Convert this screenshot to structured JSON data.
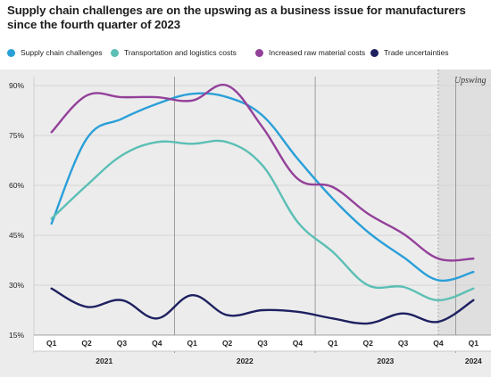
{
  "chart_data": {
    "type": "line",
    "title": "Supply chain challenges are on the upswing as a business issue for manufacturers since the fourth quarter of 2023",
    "x": [
      "Q1 2021",
      "Q2 2021",
      "Q3 2021",
      "Q4 2021",
      "Q1 2022",
      "Q2 2022",
      "Q3 2022",
      "Q4 2022",
      "Q1 2023",
      "Q2 2023",
      "Q3 2023",
      "Q4 2023",
      "Q1 2024"
    ],
    "quarter_labels": [
      "Q1",
      "Q2",
      "Q3",
      "Q4",
      "Q1",
      "Q2",
      "Q3",
      "Q4",
      "Q1",
      "Q2",
      "Q3",
      "Q4",
      "Q1"
    ],
    "year_groups": [
      {
        "label": "2021",
        "start": 0,
        "end": 3
      },
      {
        "label": "2022",
        "start": 4,
        "end": 7
      },
      {
        "label": "2023",
        "start": 8,
        "end": 11
      },
      {
        "label": "2024",
        "start": 12,
        "end": 12
      }
    ],
    "ylim": [
      15,
      90
    ],
    "yticks": [
      15,
      30,
      45,
      60,
      75,
      90
    ],
    "ytick_labels": [
      "15%",
      "30%",
      "45%",
      "60%",
      "75%",
      "90%"
    ],
    "grid": true,
    "legend": "top",
    "annotation": {
      "label": "Upswing",
      "start": 11.5,
      "end": 12.8
    },
    "series": [
      {
        "name": "Supply chain challenges",
        "color": "#2a9fd8",
        "values": [
          48.5,
          74,
          80,
          84.5,
          87.5,
          86.5,
          81,
          68,
          56,
          46,
          38.5,
          31.5,
          34
        ]
      },
      {
        "name": "Transportation and logistics costs",
        "color": "#5bbfb5",
        "values": [
          50,
          60,
          69,
          73,
          72.5,
          73,
          66,
          49,
          40,
          30,
          29.5,
          25.5,
          29
        ]
      },
      {
        "name": "Increased raw material costs",
        "color": "#93409a",
        "values": [
          76,
          87,
          86.5,
          86.5,
          85.5,
          90,
          77.5,
          62,
          59.5,
          51.5,
          45.5,
          38,
          38
        ]
      },
      {
        "name": "Trade uncertainties",
        "color": "#1e2060",
        "values": [
          29,
          23.5,
          25.5,
          20,
          27,
          21,
          22.5,
          22,
          20,
          18.5,
          21.5,
          19,
          25.5
        ]
      }
    ]
  }
}
